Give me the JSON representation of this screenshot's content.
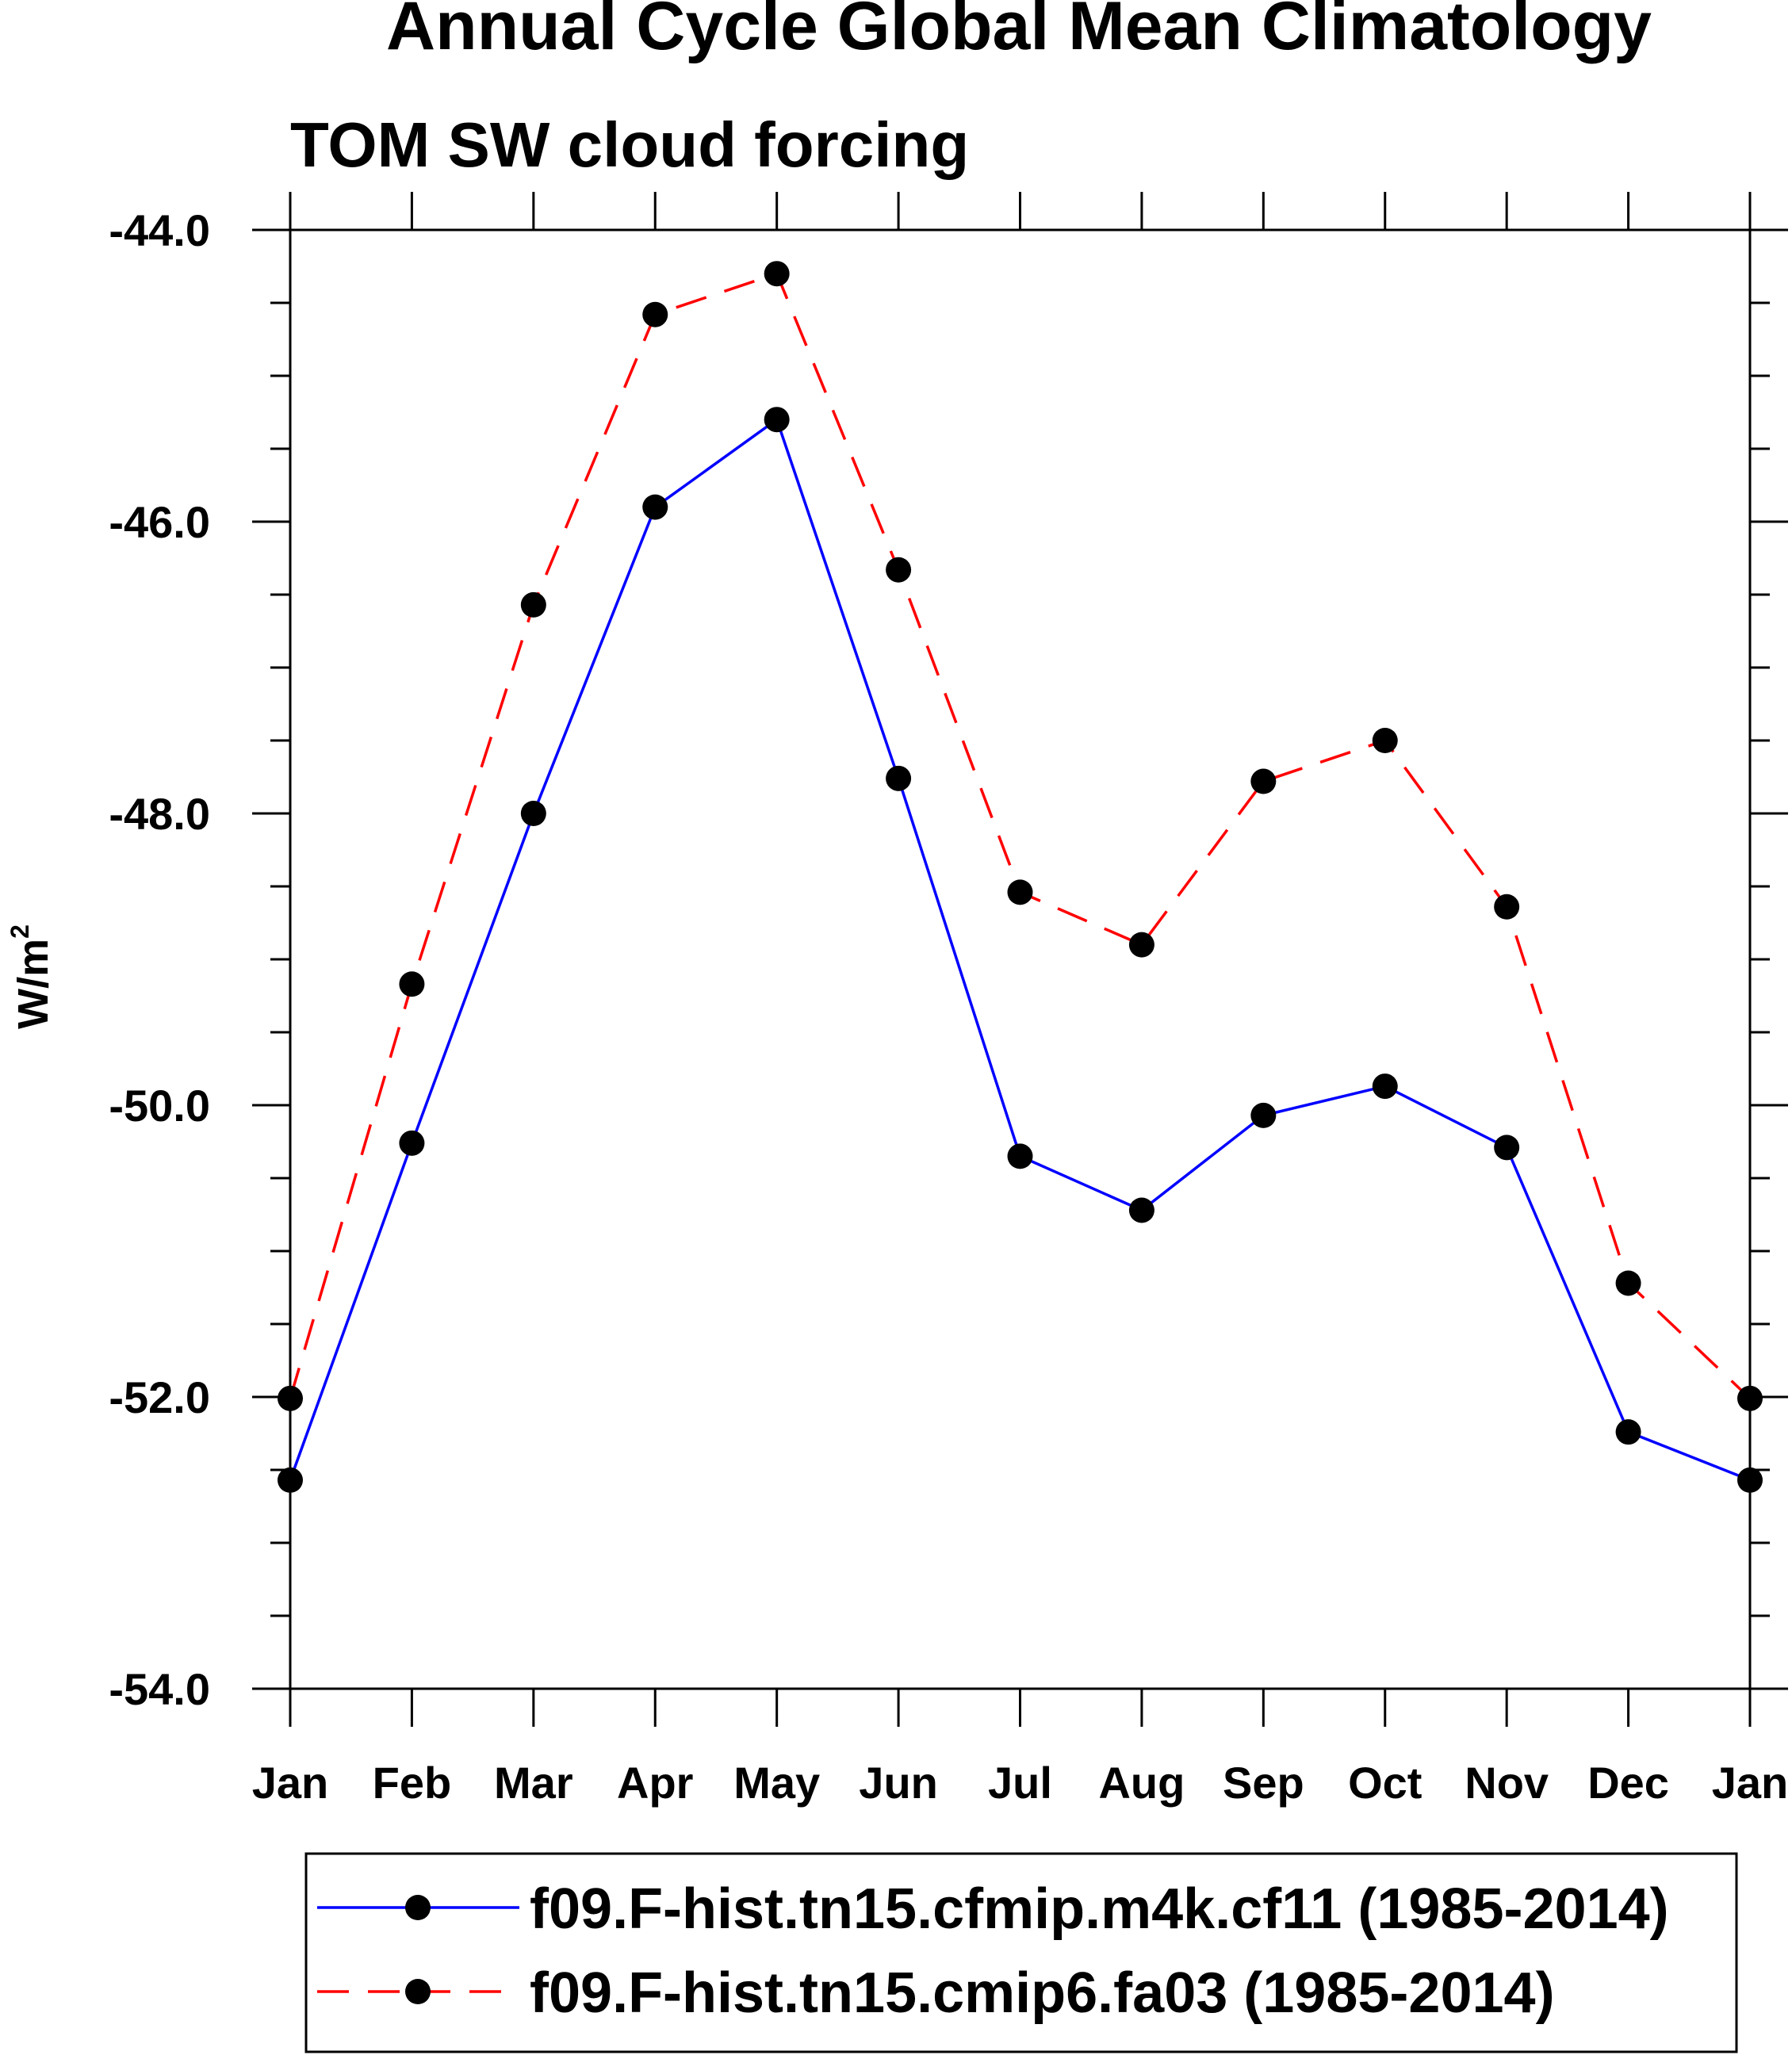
{
  "chart_data": {
    "type": "line",
    "title": "Annual Cycle Global Mean Climatology",
    "subtitle": "TOM SW cloud forcing",
    "ylabel": "W/m",
    "ylabel_sup": "2",
    "xlabel": "",
    "categories": [
      "Jan",
      "Feb",
      "Mar",
      "Apr",
      "May",
      "Jun",
      "Jul",
      "Aug",
      "Sep",
      "Oct",
      "Nov",
      "Dec",
      "Jan"
    ],
    "ylim": [
      -54.0,
      -44.0
    ],
    "yticks": [
      "-44.0",
      "-46.0",
      "-48.0",
      "-50.0",
      "-52.0",
      "-54.0"
    ],
    "ytick_values": [
      -44.0,
      -46.0,
      -48.0,
      -50.0,
      -52.0,
      -54.0
    ],
    "series": [
      {
        "name": "f09.F-hist.tn15.cfmip.m4k.cf11 (1985-2014)",
        "color": "#0000ff",
        "dash": "solid",
        "values": [
          -52.57,
          -50.26,
          -48.0,
          -45.9,
          -45.3,
          -47.76,
          -50.35,
          -50.72,
          -50.07,
          -49.87,
          -50.29,
          -52.24,
          -52.57
        ]
      },
      {
        "name": "f09.F-hist.tn15.cmip6.fa03 (1985-2014)",
        "color": "#ff0000",
        "dash": "dashed",
        "values": [
          -52.01,
          -49.17,
          -46.57,
          -44.58,
          -44.3,
          -46.33,
          -48.54,
          -48.9,
          -47.78,
          -47.5,
          -48.64,
          -51.22,
          -52.01
        ]
      }
    ],
    "legend_position": "bottom",
    "grid": false
  }
}
